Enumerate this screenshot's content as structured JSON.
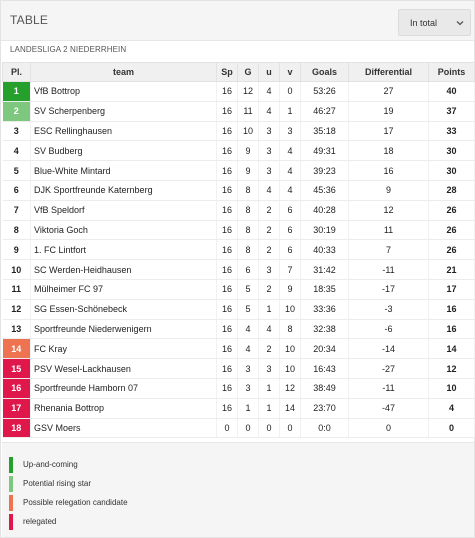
{
  "header": {
    "title": "TABLE",
    "filter_label": "In total"
  },
  "league_name": "LANDESLIGA 2 NIEDERRHEIN",
  "columns": [
    "Pl.",
    "team",
    "Sp",
    "G",
    "u",
    "v",
    "Goals",
    "Differential",
    "Points"
  ],
  "colors": {
    "up_and_coming": "#26a02c",
    "potential_rising_star": "#7ec77f",
    "possible_relegation": "#ee7350",
    "relegated": "#e0174a"
  },
  "rows": [
    {
      "pos": "1",
      "team": "VfB Bottrop",
      "sp": "16",
      "g": "12",
      "u": "4",
      "v": "0",
      "goals": "53:26",
      "diff": "27",
      "pts": "40",
      "status": "up_and_coming"
    },
    {
      "pos": "2",
      "team": "SV Scherpenberg",
      "sp": "16",
      "g": "11",
      "u": "4",
      "v": "1",
      "goals": "46:27",
      "diff": "19",
      "pts": "37",
      "status": "potential_rising_star"
    },
    {
      "pos": "3",
      "team": "ESC Rellinghausen",
      "sp": "16",
      "g": "10",
      "u": "3",
      "v": "3",
      "goals": "35:18",
      "diff": "17",
      "pts": "33",
      "status": ""
    },
    {
      "pos": "4",
      "team": "SV Budberg",
      "sp": "16",
      "g": "9",
      "u": "3",
      "v": "4",
      "goals": "49:31",
      "diff": "18",
      "pts": "30",
      "status": ""
    },
    {
      "pos": "5",
      "team": "Blue-White Mintard",
      "sp": "16",
      "g": "9",
      "u": "3",
      "v": "4",
      "goals": "39:23",
      "diff": "16",
      "pts": "30",
      "status": ""
    },
    {
      "pos": "6",
      "team": "DJK Sportfreunde Katernberg",
      "sp": "16",
      "g": "8",
      "u": "4",
      "v": "4",
      "goals": "45:36",
      "diff": "9",
      "pts": "28",
      "status": ""
    },
    {
      "pos": "7",
      "team": "VfB Speldorf",
      "sp": "16",
      "g": "8",
      "u": "2",
      "v": "6",
      "goals": "40:28",
      "diff": "12",
      "pts": "26",
      "status": ""
    },
    {
      "pos": "8",
      "team": "Viktoria Goch",
      "sp": "16",
      "g": "8",
      "u": "2",
      "v": "6",
      "goals": "30:19",
      "diff": "11",
      "pts": "26",
      "status": ""
    },
    {
      "pos": "9",
      "team": "1. FC Lintfort",
      "sp": "16",
      "g": "8",
      "u": "2",
      "v": "6",
      "goals": "40:33",
      "diff": "7",
      "pts": "26",
      "status": ""
    },
    {
      "pos": "10",
      "team": "SC Werden-Heidhausen",
      "sp": "16",
      "g": "6",
      "u": "3",
      "v": "7",
      "goals": "31:42",
      "diff": "-11",
      "pts": "21",
      "status": ""
    },
    {
      "pos": "11",
      "team": "Mülheimer FC 97",
      "sp": "16",
      "g": "5",
      "u": "2",
      "v": "9",
      "goals": "18:35",
      "diff": "-17",
      "pts": "17",
      "status": ""
    },
    {
      "pos": "12",
      "team": "SG Essen-Schönebeck",
      "sp": "16",
      "g": "5",
      "u": "1",
      "v": "10",
      "goals": "33:36",
      "diff": "-3",
      "pts": "16",
      "status": ""
    },
    {
      "pos": "13",
      "team": "Sportfreunde Niederwenigern",
      "sp": "16",
      "g": "4",
      "u": "4",
      "v": "8",
      "goals": "32:38",
      "diff": "-6",
      "pts": "16",
      "status": ""
    },
    {
      "pos": "14",
      "team": "FC Kray",
      "sp": "16",
      "g": "4",
      "u": "2",
      "v": "10",
      "goals": "20:34",
      "diff": "-14",
      "pts": "14",
      "status": "possible_relegation"
    },
    {
      "pos": "15",
      "team": "PSV Wesel-Lackhausen",
      "sp": "16",
      "g": "3",
      "u": "3",
      "v": "10",
      "goals": "16:43",
      "diff": "-27",
      "pts": "12",
      "status": "relegated"
    },
    {
      "pos": "16",
      "team": "Sportfreunde Hamborn 07",
      "sp": "16",
      "g": "3",
      "u": "1",
      "v": "12",
      "goals": "38:49",
      "diff": "-11",
      "pts": "10",
      "status": "relegated"
    },
    {
      "pos": "17",
      "team": "Rhenania Bottrop",
      "sp": "16",
      "g": "1",
      "u": "1",
      "v": "14",
      "goals": "23:70",
      "diff": "-47",
      "pts": "4",
      "status": "relegated"
    },
    {
      "pos": "18",
      "team": "GSV Moers",
      "sp": "0",
      "g": "0",
      "u": "0",
      "v": "0",
      "goals": "0:0",
      "diff": "0",
      "pts": "0",
      "status": "relegated"
    }
  ],
  "legend": [
    {
      "label": "Up-and-coming",
      "status": "up_and_coming"
    },
    {
      "label": "Potential rising star",
      "status": "potential_rising_star"
    },
    {
      "label": "Possible relegation candidate",
      "status": "possible_relegation"
    },
    {
      "label": "relegated",
      "status": "relegated"
    }
  ]
}
